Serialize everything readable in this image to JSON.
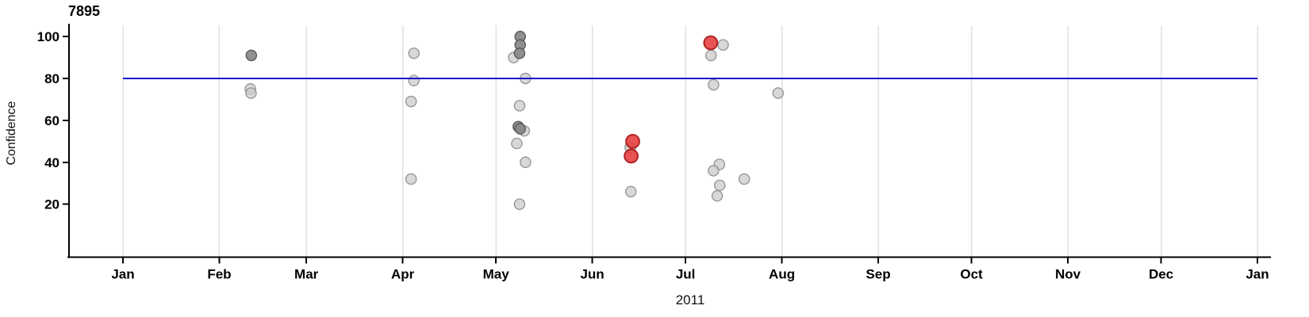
{
  "chart_data": {
    "type": "scatter",
    "title": "7895",
    "xlabel": "2011",
    "ylabel": "Confidence",
    "x_axis": {
      "unit": "day_of_year_2011",
      "range_days": [
        0,
        365
      ],
      "tick_days": [
        0,
        31,
        59,
        90,
        120,
        151,
        181,
        212,
        243,
        273,
        304,
        334,
        365
      ],
      "tick_labels": [
        "Jan",
        "Feb",
        "Mar",
        "Apr",
        "May",
        "Jun",
        "Jul",
        "Aug",
        "Sep",
        "Oct",
        "Nov",
        "Dec",
        "Jan"
      ]
    },
    "y_axis": {
      "ticks": [
        20,
        40,
        60,
        80,
        100
      ],
      "range": [
        -6,
        105
      ]
    },
    "grid": "vertical-month-gridlines",
    "legend": "none",
    "reference_line": {
      "y": 80,
      "span_days": [
        0,
        365
      ],
      "color": "#1414cc"
    },
    "colors": {
      "point_light_fill": "#cbcbcb",
      "point_light_stroke": "#8f8f8f",
      "point_dark_fill": "#8a8a8a",
      "point_dark_stroke": "#505050",
      "point_red_fill": "#e64040",
      "point_red_stroke": "#b02323",
      "gridline": "#e0e0e0",
      "axis": "#000000"
    },
    "series": [
      {
        "name": "observations",
        "marker": "gray-circle",
        "points": [
          {
            "day": 41.0,
            "value": 75,
            "shade": "light"
          },
          {
            "day": 41.2,
            "value": 73,
            "shade": "light"
          },
          {
            "day": 41.3,
            "value": 91,
            "shade": "dark"
          },
          {
            "day": 93.6,
            "value": 92,
            "shade": "light"
          },
          {
            "day": 93.6,
            "value": 79,
            "shade": "light"
          },
          {
            "day": 92.7,
            "value": 69,
            "shade": "light"
          },
          {
            "day": 92.7,
            "value": 32,
            "shade": "light"
          },
          {
            "day": 127.8,
            "value": 100,
            "shade": "dark"
          },
          {
            "day": 127.8,
            "value": 96,
            "shade": "dark"
          },
          {
            "day": 127.6,
            "value": 92,
            "shade": "dark"
          },
          {
            "day": 125.7,
            "value": 90,
            "shade": "light"
          },
          {
            "day": 129.5,
            "value": 80,
            "shade": "light"
          },
          {
            "day": 127.6,
            "value": 67,
            "shade": "light"
          },
          {
            "day": 127.2,
            "value": 57,
            "shade": "dark"
          },
          {
            "day": 127.8,
            "value": 56,
            "shade": "dark"
          },
          {
            "day": 129.1,
            "value": 55,
            "shade": "light"
          },
          {
            "day": 126.7,
            "value": 49,
            "shade": "light"
          },
          {
            "day": 129.5,
            "value": 40,
            "shade": "light"
          },
          {
            "day": 127.6,
            "value": 20,
            "shade": "light"
          },
          {
            "day": 163.2,
            "value": 47,
            "shade": "light"
          },
          {
            "day": 163.4,
            "value": 26,
            "shade": "light"
          },
          {
            "day": 193.1,
            "value": 96,
            "shade": "light"
          },
          {
            "day": 189.2,
            "value": 91,
            "shade": "light"
          },
          {
            "day": 190.0,
            "value": 77,
            "shade": "light"
          },
          {
            "day": 191.9,
            "value": 39,
            "shade": "light"
          },
          {
            "day": 190.0,
            "value": 36,
            "shade": "light"
          },
          {
            "day": 192.0,
            "value": 29,
            "shade": "light"
          },
          {
            "day": 191.2,
            "value": 24,
            "shade": "light"
          },
          {
            "day": 199.9,
            "value": 32,
            "shade": "light"
          },
          {
            "day": 210.8,
            "value": 73,
            "shade": "light"
          }
        ]
      },
      {
        "name": "highlighted-observations",
        "marker": "red-circle-large",
        "points": [
          {
            "day": 164.0,
            "value": 50
          },
          {
            "day": 163.5,
            "value": 43
          },
          {
            "day": 189.1,
            "value": 97
          }
        ]
      }
    ]
  }
}
